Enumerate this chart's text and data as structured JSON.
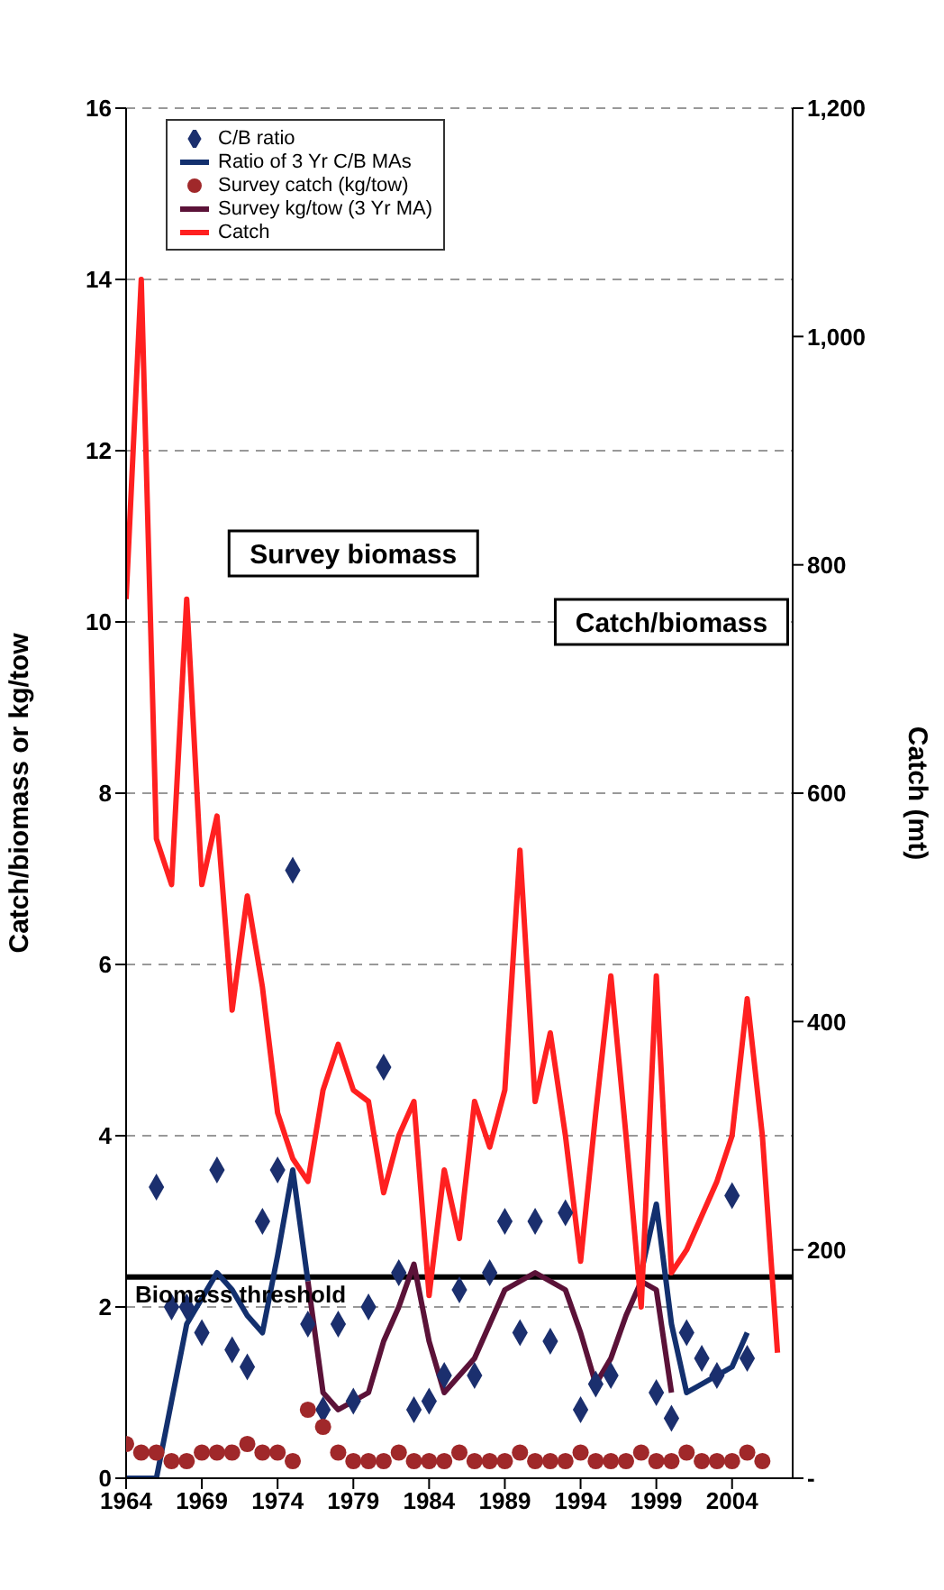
{
  "chart_data": {
    "type": "line",
    "ylabel": "Catch/biomass or kg/tow",
    "y2label": "Catch (mt)",
    "x": [
      1964,
      1965,
      1966,
      1967,
      1968,
      1969,
      1970,
      1971,
      1972,
      1973,
      1974,
      1975,
      1976,
      1977,
      1978,
      1979,
      1980,
      1981,
      1982,
      1983,
      1984,
      1985,
      1986,
      1987,
      1988,
      1989,
      1990,
      1991,
      1992,
      1993,
      1994,
      1995,
      1996,
      1997,
      1998,
      1999,
      2000,
      2001,
      2002,
      2003,
      2004,
      2005,
      2006,
      2007
    ],
    "xlim": [
      1964,
      2008
    ],
    "xticks": [
      1964,
      1969,
      1974,
      1979,
      1984,
      1989,
      1994,
      1999,
      2004
    ],
    "ylim": [
      0,
      16
    ],
    "yticks": [
      0,
      2,
      4,
      6,
      8,
      10,
      12,
      14,
      16
    ],
    "y2lim": [
      0,
      1200
    ],
    "y2ticks": [
      {
        "value": 0,
        "label": "-"
      },
      200,
      400,
      600,
      800,
      {
        "value": 1000,
        "label": "1,000"
      },
      {
        "value": 1200,
        "label": "1,200"
      }
    ],
    "grid": "y",
    "legend": "top left",
    "series": [
      {
        "name": "C/B ratio",
        "type": "scatter",
        "marker": "diamond",
        "color": "#1b2f6e",
        "values": [
          null,
          null,
          3.4,
          2.0,
          2.0,
          1.7,
          3.6,
          1.5,
          1.3,
          3.0,
          3.6,
          7.1,
          1.8,
          0.8,
          1.8,
          0.9,
          2.0,
          4.8,
          2.4,
          0.8,
          0.9,
          1.2,
          2.2,
          1.2,
          2.4,
          3.0,
          1.7,
          3.0,
          1.6,
          3.1,
          0.8,
          1.1,
          1.2,
          null,
          null,
          1.0,
          0.7,
          1.7,
          1.4,
          1.2,
          3.3,
          1.4,
          null,
          null
        ]
      },
      {
        "name": "Ratio of 3 Yr C/B MAs",
        "type": "line",
        "color": "#13306e",
        "values": [
          0,
          0,
          0,
          0.9,
          1.8,
          2.1,
          2.4,
          2.2,
          1.9,
          1.7,
          2.6,
          3.6,
          2.3,
          null,
          null,
          null,
          null,
          null,
          null,
          null,
          null,
          null,
          null,
          null,
          null,
          null,
          null,
          null,
          null,
          null,
          null,
          null,
          null,
          null,
          2.4,
          3.2,
          1.8,
          1.0,
          1.1,
          1.2,
          1.3,
          1.7,
          null,
          null
        ]
      },
      {
        "name": "Survey catch (kg/tow)",
        "type": "scatter",
        "marker": "circle",
        "color": "#a0282a",
        "values": [
          0.4,
          0.3,
          0.3,
          0.2,
          0.2,
          0.3,
          0.3,
          0.3,
          0.4,
          0.3,
          0.3,
          0.2,
          0.8,
          0.6,
          0.3,
          0.2,
          0.2,
          0.2,
          0.3,
          0.2,
          0.2,
          0.2,
          0.3,
          0.2,
          0.2,
          0.2,
          0.3,
          0.2,
          0.2,
          0.2,
          0.3,
          0.2,
          0.2,
          0.2,
          0.3,
          0.2,
          0.2,
          0.3,
          0.2,
          0.2,
          0.2,
          0.3,
          0.2,
          null
        ]
      },
      {
        "name": "Survey kg/tow (3 Yr MA)",
        "type": "line",
        "color": "#5b1238",
        "values": [
          null,
          null,
          null,
          null,
          null,
          null,
          null,
          null,
          null,
          null,
          null,
          null,
          2.3,
          1.0,
          0.8,
          0.9,
          1.0,
          1.6,
          2.0,
          2.5,
          1.6,
          1.0,
          1.2,
          1.4,
          1.8,
          2.2,
          2.3,
          2.4,
          2.3,
          2.2,
          1.7,
          1.1,
          1.4,
          1.9,
          2.3,
          2.2,
          1.0,
          null,
          null,
          null,
          null,
          null,
          null,
          null
        ]
      },
      {
        "name": "Catch",
        "type": "line",
        "axis": "y2",
        "color": "#ff2020",
        "values": [
          770,
          1050,
          560,
          520,
          770,
          520,
          580,
          410,
          510,
          430,
          320,
          280,
          260,
          340,
          380,
          340,
          330,
          250,
          300,
          330,
          160,
          270,
          210,
          330,
          290,
          340,
          550,
          330,
          390,
          300,
          190,
          320,
          440,
          300,
          150,
          440,
          180,
          200,
          230,
          260,
          300,
          420,
          300,
          110
        ]
      }
    ],
    "ref_lines": [
      {
        "axis": "y",
        "value": 2.35,
        "label": "Biomass threshold",
        "color": "#000000"
      }
    ],
    "annotations": [
      "Survey biomass",
      "Catch/biomass"
    ]
  }
}
